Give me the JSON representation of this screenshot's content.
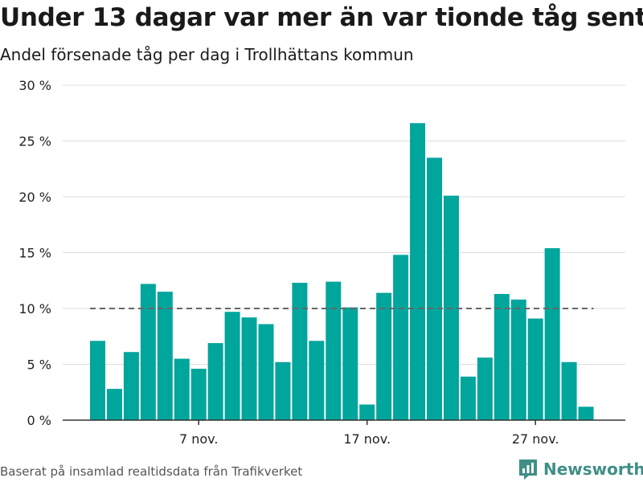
{
  "title": "Under 13 dagar var mer än var tionde tåg sent",
  "subtitle": "Andel försenade tåg per dag i Trollhättans kommun",
  "footer": "Baserat på insamlad realtidsdata från Trafikverket",
  "brand": "Newsworthy",
  "colors": {
    "bar": "#00a59b",
    "reference_line": "#666666",
    "grid": "#dddddd",
    "brand": "#3f8f86"
  },
  "chart_data": {
    "type": "bar",
    "x": [
      "2020-11-01",
      "2020-11-02",
      "2020-11-03",
      "2020-11-04",
      "2020-11-05",
      "2020-11-06",
      "2020-11-07",
      "2020-11-08",
      "2020-11-09",
      "2020-11-10",
      "2020-11-11",
      "2020-11-12",
      "2020-11-13",
      "2020-11-14",
      "2020-11-15",
      "2020-11-16",
      "2020-11-17",
      "2020-11-18",
      "2020-11-19",
      "2020-11-20",
      "2020-11-21",
      "2020-11-22",
      "2020-11-23",
      "2020-11-24",
      "2020-11-25",
      "2020-11-26",
      "2020-11-27",
      "2020-11-28",
      "2020-11-29",
      "2020-11-30"
    ],
    "values": [
      7.1,
      2.8,
      6.1,
      12.2,
      11.5,
      5.5,
      4.6,
      6.9,
      9.7,
      9.2,
      8.6,
      5.2,
      12.3,
      7.1,
      12.4,
      10.1,
      1.4,
      11.4,
      14.8,
      26.6,
      23.5,
      20.1,
      3.9,
      5.6,
      11.3,
      10.8,
      9.1,
      15.4,
      5.2,
      1.2
    ],
    "x_ticks": [
      {
        "x": "2020-11-07",
        "label": "7 nov."
      },
      {
        "x": "2020-11-17",
        "label": "17 nov."
      },
      {
        "x": "2020-11-27",
        "label": "27 nov."
      }
    ],
    "y_ticks": [
      0,
      5,
      10,
      15,
      20,
      25,
      30
    ],
    "y_tick_labels": [
      "0 %",
      "5 %",
      "10 %",
      "15 %",
      "20 %",
      "25 %",
      "30 %"
    ],
    "ylim": [
      0,
      30
    ],
    "reference_line": 10,
    "grid": true
  }
}
